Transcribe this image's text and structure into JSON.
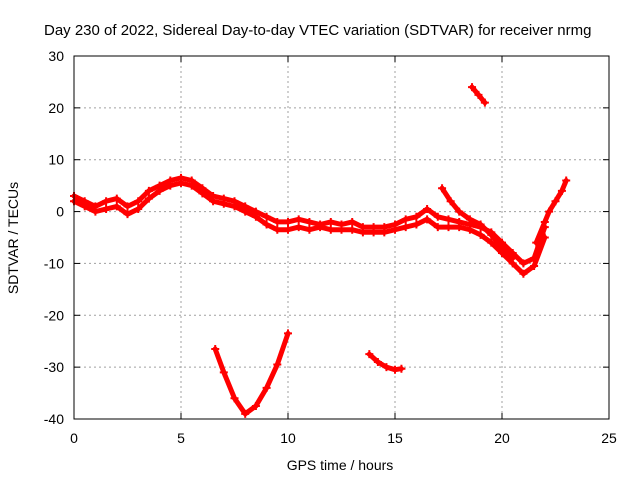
{
  "chart_data": {
    "type": "scatter",
    "title": "Day 230 of 2022, Sidereal Day-to-day VTEC variation (SDTVAR) for receiver nrmg",
    "xlabel": "GPS time / hours",
    "ylabel": "SDTVAR / TECUs",
    "xlim": [
      0,
      25
    ],
    "ylim": [
      -40,
      30
    ],
    "xticks": [
      0,
      5,
      10,
      15,
      20,
      25
    ],
    "yticks": [
      -40,
      -30,
      -20,
      -10,
      0,
      10,
      20,
      30
    ],
    "grid": true,
    "series_color": "#ff0000",
    "series": [
      {
        "name": "trace-main-upper",
        "points": [
          [
            0,
            3
          ],
          [
            0.5,
            2
          ],
          [
            1,
            1
          ],
          [
            1.5,
            2
          ],
          [
            2,
            2.5
          ],
          [
            2.5,
            1
          ],
          [
            3,
            2
          ],
          [
            3.5,
            4
          ],
          [
            4,
            5
          ],
          [
            4.5,
            6
          ],
          [
            5,
            6.5
          ],
          [
            5.5,
            6
          ],
          [
            6,
            4.5
          ],
          [
            6.5,
            3
          ],
          [
            7,
            2.5
          ],
          [
            7.5,
            2
          ],
          [
            8,
            1
          ],
          [
            8.5,
            0
          ],
          [
            9,
            -1
          ],
          [
            9.5,
            -2
          ],
          [
            10,
            -2
          ],
          [
            10.5,
            -1.5
          ],
          [
            11,
            -2
          ],
          [
            11.5,
            -2.5
          ],
          [
            12,
            -2
          ],
          [
            12.5,
            -2.5
          ],
          [
            13,
            -2
          ],
          [
            13.5,
            -3
          ],
          [
            14,
            -3
          ],
          [
            14.5,
            -3
          ],
          [
            15,
            -2.5
          ],
          [
            15.5,
            -1.5
          ],
          [
            16,
            -1
          ],
          [
            16.5,
            0.5
          ],
          [
            17,
            -1
          ],
          [
            17.5,
            -1.5
          ],
          [
            18,
            -2
          ],
          [
            18.5,
            -2.5
          ],
          [
            19,
            -3
          ],
          [
            19.5,
            -4
          ],
          [
            20,
            -6
          ],
          [
            20.5,
            -8
          ],
          [
            21,
            -10
          ],
          [
            21.5,
            -9
          ],
          [
            22,
            -3
          ]
        ]
      },
      {
        "name": "trace-main-lower",
        "points": [
          [
            0,
            2
          ],
          [
            0.5,
            1
          ],
          [
            1,
            0
          ],
          [
            1.5,
            0.5
          ],
          [
            2,
            1
          ],
          [
            2.5,
            -0.5
          ],
          [
            3,
            0.5
          ],
          [
            3.5,
            2.5
          ],
          [
            4,
            4
          ],
          [
            4.5,
            5
          ],
          [
            5,
            5.5
          ],
          [
            5.5,
            5
          ],
          [
            6,
            3.5
          ],
          [
            6.5,
            2
          ],
          [
            7,
            1.5
          ],
          [
            7.5,
            1
          ],
          [
            8,
            0
          ],
          [
            8.5,
            -1
          ],
          [
            9,
            -2.5
          ],
          [
            9.5,
            -3.5
          ],
          [
            10,
            -3.5
          ],
          [
            10.5,
            -3
          ],
          [
            11,
            -3.5
          ],
          [
            11.5,
            -3
          ],
          [
            12,
            -3.5
          ],
          [
            12.5,
            -3.5
          ],
          [
            13,
            -3.5
          ],
          [
            13.5,
            -4
          ],
          [
            14,
            -4
          ],
          [
            14.5,
            -4
          ],
          [
            15,
            -3.5
          ],
          [
            15.5,
            -3
          ],
          [
            16,
            -2.5
          ],
          [
            16.5,
            -1.5
          ],
          [
            17,
            -3
          ],
          [
            17.5,
            -3
          ],
          [
            18,
            -3
          ],
          [
            18.5,
            -3.5
          ],
          [
            19,
            -4.5
          ],
          [
            19.5,
            -6
          ],
          [
            20,
            -8
          ],
          [
            20.5,
            -10
          ],
          [
            21,
            -12
          ],
          [
            21.5,
            -10.5
          ],
          [
            22,
            -5
          ]
        ]
      },
      {
        "name": "trace-early-upper-branch",
        "points": [
          [
            17.2,
            4.5
          ],
          [
            17.6,
            2
          ],
          [
            18,
            0
          ],
          [
            18.5,
            -1.5
          ],
          [
            19,
            -2.5
          ],
          [
            19.5,
            -4.5
          ],
          [
            20,
            -7
          ],
          [
            20.5,
            -9
          ]
        ]
      },
      {
        "name": "trace-upper-right-fragment",
        "points": [
          [
            18.6,
            24
          ],
          [
            18.9,
            22.5
          ],
          [
            19.2,
            21
          ]
        ]
      },
      {
        "name": "trace-right-rise",
        "points": [
          [
            21.6,
            -6
          ],
          [
            22,
            -2
          ],
          [
            22.2,
            0
          ],
          [
            22.5,
            2
          ],
          [
            22.8,
            4
          ],
          [
            23,
            6
          ]
        ]
      },
      {
        "name": "trace-low-arc",
        "points": [
          [
            6.6,
            -26.5
          ],
          [
            7,
            -31
          ],
          [
            7.5,
            -36
          ],
          [
            8,
            -39
          ],
          [
            8.5,
            -37.5
          ],
          [
            9,
            -34
          ],
          [
            9.5,
            -29.5
          ],
          [
            10,
            -23.5
          ]
        ]
      },
      {
        "name": "trace-low-fragment",
        "points": [
          [
            13.8,
            -27.5
          ],
          [
            14.2,
            -29
          ],
          [
            14.6,
            -30
          ],
          [
            15,
            -30.5
          ],
          [
            15.3,
            -30.3
          ]
        ]
      }
    ]
  }
}
